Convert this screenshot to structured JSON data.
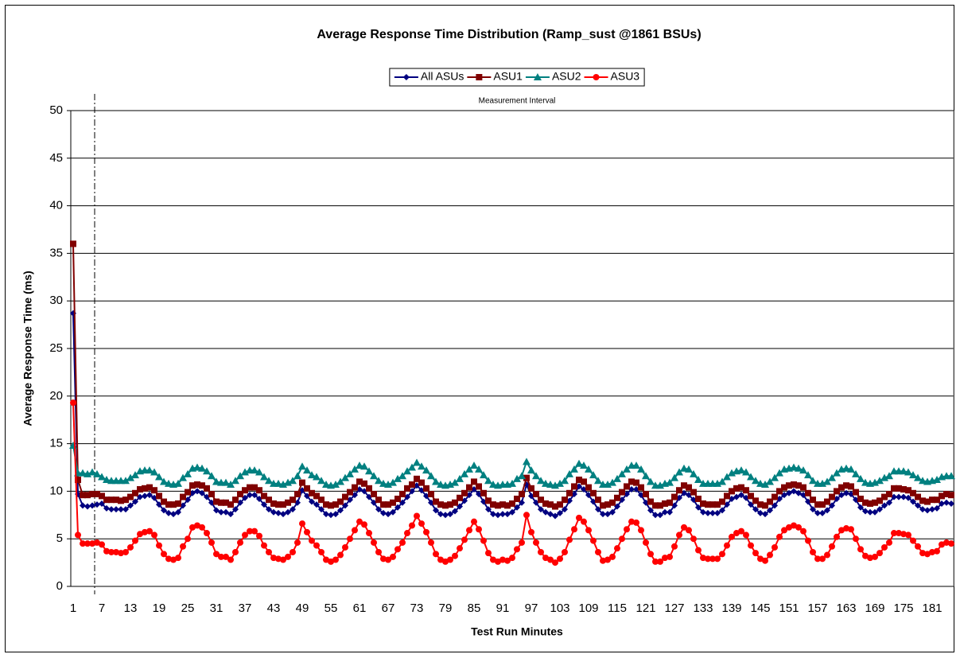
{
  "chart_data": {
    "type": "line",
    "title": "Average Response Time Distribution (Ramp_sust @1861 BSUs)",
    "xlabel": "Test Run Minutes",
    "ylabel": "Average Response Time (ms)",
    "measurement_interval": {
      "label": "Measurement Interval",
      "start": 6
    },
    "ylim": [
      0,
      50
    ],
    "yticks": [
      0,
      5,
      10,
      15,
      20,
      25,
      30,
      35,
      40,
      45,
      50
    ],
    "grid": true,
    "legend": "top",
    "categories": [
      "1",
      null,
      null,
      null,
      null,
      null,
      "7",
      null,
      null,
      null,
      null,
      null,
      "13",
      null,
      null,
      null,
      null,
      null,
      "19",
      null,
      null,
      null,
      null,
      null,
      "25",
      null,
      null,
      null,
      null,
      null,
      "31",
      null,
      null,
      null,
      null,
      null,
      "37",
      null,
      null,
      null,
      null,
      null,
      "43",
      null,
      null,
      null,
      null,
      null,
      "49",
      null,
      null,
      null,
      null,
      null,
      "55",
      null,
      null,
      null,
      null,
      null,
      "61",
      null,
      null,
      null,
      null,
      null,
      "67",
      null,
      null,
      null,
      null,
      null,
      "73",
      null,
      null,
      null,
      null,
      null,
      "79",
      null,
      null,
      null,
      null,
      null,
      "85",
      null,
      null,
      null,
      null,
      null,
      "91",
      null,
      null,
      null,
      null,
      null,
      "97",
      null,
      null,
      null,
      null,
      null,
      "103",
      null,
      null,
      null,
      null,
      null,
      "109",
      null,
      null,
      null,
      null,
      null,
      "115",
      null,
      null,
      null,
      null,
      null,
      "121",
      null,
      null,
      null,
      null,
      null,
      "127",
      null,
      null,
      null,
      null,
      null,
      "133",
      null,
      null,
      null,
      null,
      null,
      "139",
      null,
      null,
      null,
      null,
      null,
      "145",
      null,
      null,
      null,
      null,
      null,
      "151",
      null,
      null,
      null,
      null,
      null,
      "157",
      null,
      null,
      null,
      null,
      null,
      "163",
      null,
      null,
      null,
      null,
      null,
      "169",
      null,
      null,
      null,
      null,
      null,
      "175",
      null,
      null,
      null,
      null,
      null,
      "181",
      null,
      null,
      null,
      null
    ],
    "series": [
      {
        "name": "All ASUs",
        "color": "#000080",
        "marker": "diamond",
        "values": [
          28.7,
          9.7,
          8.5,
          8.4,
          8.5,
          8.6,
          8.7,
          8.2,
          8.1,
          8.1,
          8.1,
          8.1,
          8.5,
          8.9,
          9.4,
          9.5,
          9.6,
          9.3,
          8.6,
          8.0,
          7.7,
          7.6,
          7.8,
          8.5,
          9.1,
          9.8,
          10.0,
          9.8,
          9.4,
          8.8,
          8.0,
          7.8,
          7.8,
          7.6,
          8.1,
          8.8,
          9.3,
          9.6,
          9.6,
          9.2,
          8.6,
          8.1,
          7.8,
          7.7,
          7.6,
          7.8,
          8.1,
          8.8,
          10.1,
          9.5,
          8.9,
          8.6,
          8.1,
          7.6,
          7.5,
          7.6,
          8.0,
          8.5,
          9.1,
          9.6,
          10.2,
          10.0,
          9.4,
          8.8,
          8.1,
          7.7,
          7.6,
          7.8,
          8.3,
          8.8,
          9.4,
          10.0,
          10.6,
          10.1,
          9.5,
          8.8,
          8.0,
          7.6,
          7.5,
          7.6,
          7.9,
          8.4,
          9.0,
          9.6,
          10.2,
          9.7,
          8.9,
          8.1,
          7.6,
          7.5,
          7.6,
          7.6,
          7.8,
          8.3,
          8.8,
          10.7,
          9.5,
          8.8,
          8.1,
          7.8,
          7.6,
          7.4,
          7.7,
          8.1,
          9.0,
          9.7,
          10.5,
          10.2,
          9.6,
          8.9,
          8.1,
          7.6,
          7.6,
          7.8,
          8.4,
          9.1,
          9.7,
          10.2,
          10.2,
          9.6,
          8.8,
          8.0,
          7.5,
          7.5,
          7.8,
          7.8,
          8.5,
          9.3,
          9.8,
          9.6,
          9.1,
          8.3,
          7.8,
          7.7,
          7.7,
          7.7,
          8.0,
          8.6,
          9.2,
          9.4,
          9.6,
          9.3,
          8.6,
          8.1,
          7.7,
          7.6,
          8.0,
          8.5,
          9.2,
          9.6,
          9.8,
          10.0,
          9.8,
          9.6,
          8.9,
          8.1,
          7.7,
          7.7,
          8.0,
          8.5,
          9.2,
          9.6,
          9.8,
          9.7,
          9.1,
          8.3,
          7.9,
          7.8,
          7.8,
          8.1,
          8.5,
          8.8,
          9.4,
          9.4,
          9.4,
          9.3,
          8.9,
          8.5,
          8.1,
          8.0,
          8.1,
          8.2,
          8.7,
          8.8,
          8.7
        ]
      },
      {
        "name": "ASU1",
        "color": "#800000",
        "marker": "square",
        "values": [
          36.0,
          11.2,
          9.6,
          9.6,
          9.7,
          9.7,
          9.5,
          9.1,
          9.1,
          9.1,
          9.0,
          9.1,
          9.4,
          9.8,
          10.2,
          10.3,
          10.4,
          10.1,
          9.5,
          8.9,
          8.6,
          8.6,
          8.7,
          9.4,
          9.9,
          10.6,
          10.7,
          10.6,
          10.3,
          9.7,
          8.9,
          8.8,
          8.8,
          8.6,
          9.1,
          9.7,
          10.1,
          10.4,
          10.4,
          10.1,
          9.5,
          9.1,
          8.7,
          8.6,
          8.6,
          8.8,
          9.1,
          9.7,
          10.9,
          10.3,
          9.8,
          9.5,
          9.1,
          8.6,
          8.5,
          8.6,
          8.9,
          9.4,
          9.9,
          10.4,
          11.0,
          10.8,
          10.3,
          9.7,
          9.1,
          8.6,
          8.6,
          8.8,
          9.2,
          9.7,
          10.3,
          10.7,
          11.3,
          10.9,
          10.3,
          9.7,
          8.9,
          8.6,
          8.5,
          8.6,
          8.8,
          9.3,
          9.8,
          10.4,
          11.0,
          10.5,
          9.8,
          9.0,
          8.6,
          8.5,
          8.6,
          8.5,
          8.7,
          9.2,
          9.7,
          11.4,
          10.3,
          9.7,
          9.1,
          8.7,
          8.6,
          8.4,
          8.6,
          9.1,
          9.8,
          10.5,
          11.2,
          11.0,
          10.4,
          9.8,
          9.1,
          8.5,
          8.6,
          8.8,
          9.3,
          9.9,
          10.5,
          11.0,
          10.9,
          10.4,
          9.7,
          8.9,
          8.5,
          8.5,
          8.7,
          8.8,
          9.4,
          10.1,
          10.6,
          10.4,
          9.9,
          9.2,
          8.7,
          8.6,
          8.6,
          8.6,
          8.9,
          9.5,
          10.0,
          10.3,
          10.4,
          10.1,
          9.5,
          9.0,
          8.6,
          8.5,
          8.9,
          9.4,
          10.0,
          10.4,
          10.6,
          10.7,
          10.6,
          10.4,
          9.8,
          9.1,
          8.6,
          8.6,
          8.9,
          9.4,
          10.0,
          10.4,
          10.6,
          10.5,
          9.9,
          9.2,
          8.8,
          8.7,
          8.8,
          9.0,
          9.4,
          9.7,
          10.3,
          10.3,
          10.2,
          10.1,
          9.8,
          9.4,
          9.0,
          8.9,
          9.1,
          9.1,
          9.5,
          9.7,
          9.6
        ]
      },
      {
        "name": "ASU2",
        "color": "#008080",
        "marker": "triangle",
        "values": [
          14.8,
          11.9,
          11.9,
          11.8,
          12.0,
          11.8,
          11.5,
          11.2,
          11.1,
          11.1,
          11.1,
          11.1,
          11.4,
          11.7,
          12.1,
          12.2,
          12.2,
          12.0,
          11.5,
          11.0,
          10.8,
          10.7,
          10.8,
          11.4,
          11.8,
          12.4,
          12.5,
          12.4,
          12.1,
          11.6,
          11.0,
          10.9,
          10.9,
          10.7,
          11.1,
          11.6,
          12.0,
          12.2,
          12.2,
          12.0,
          11.5,
          11.1,
          10.8,
          10.8,
          10.7,
          10.9,
          11.1,
          11.6,
          12.6,
          12.2,
          11.7,
          11.5,
          11.1,
          10.7,
          10.6,
          10.7,
          11.0,
          11.4,
          11.8,
          12.3,
          12.7,
          12.6,
          12.1,
          11.6,
          11.1,
          10.8,
          10.7,
          10.9,
          11.3,
          11.6,
          12.1,
          12.5,
          13.0,
          12.6,
          12.2,
          11.6,
          11.0,
          10.7,
          10.6,
          10.7,
          10.9,
          11.3,
          11.8,
          12.3,
          12.7,
          12.3,
          11.7,
          11.1,
          10.7,
          10.6,
          10.7,
          10.7,
          10.8,
          11.3,
          11.6,
          13.1,
          12.2,
          11.6,
          11.1,
          10.8,
          10.7,
          10.6,
          10.8,
          11.1,
          11.8,
          12.3,
          12.9,
          12.7,
          12.3,
          11.7,
          11.1,
          10.7,
          10.7,
          10.9,
          11.3,
          11.8,
          12.3,
          12.7,
          12.7,
          12.3,
          11.6,
          11.0,
          10.6,
          10.6,
          10.8,
          10.9,
          11.4,
          12.0,
          12.4,
          12.3,
          11.8,
          11.2,
          10.8,
          10.8,
          10.8,
          10.8,
          11.0,
          11.5,
          11.9,
          12.1,
          12.2,
          12.0,
          11.5,
          11.1,
          10.8,
          10.7,
          11.0,
          11.4,
          11.9,
          12.3,
          12.4,
          12.5,
          12.4,
          12.2,
          11.7,
          11.1,
          10.8,
          10.8,
          11.0,
          11.4,
          11.9,
          12.3,
          12.4,
          12.3,
          11.8,
          11.3,
          10.9,
          10.8,
          10.9,
          11.1,
          11.4,
          11.6,
          12.1,
          12.1,
          12.1,
          12.0,
          11.7,
          11.4,
          11.1,
          11.0,
          11.1,
          11.2,
          11.5,
          11.6,
          11.6
        ]
      },
      {
        "name": "ASU3",
        "color": "#ff0000",
        "marker": "circle",
        "values": [
          19.3,
          5.4,
          4.5,
          4.5,
          4.5,
          4.6,
          4.4,
          3.7,
          3.6,
          3.6,
          3.5,
          3.6,
          4.1,
          4.8,
          5.5,
          5.7,
          5.8,
          5.4,
          4.3,
          3.4,
          2.9,
          2.8,
          3.0,
          4.2,
          5.0,
          6.2,
          6.4,
          6.2,
          5.6,
          4.6,
          3.4,
          3.1,
          3.1,
          2.8,
          3.6,
          4.6,
          5.4,
          5.8,
          5.8,
          5.3,
          4.3,
          3.6,
          3.0,
          2.9,
          2.8,
          3.1,
          3.6,
          4.6,
          6.6,
          5.7,
          4.8,
          4.3,
          3.6,
          2.8,
          2.6,
          2.8,
          3.3,
          4.1,
          5.0,
          5.9,
          6.8,
          6.5,
          5.6,
          4.6,
          3.6,
          2.9,
          2.8,
          3.1,
          3.9,
          4.6,
          5.6,
          6.4,
          7.4,
          6.6,
          5.7,
          4.6,
          3.4,
          2.8,
          2.6,
          2.8,
          3.2,
          4.0,
          4.9,
          5.9,
          6.8,
          6.0,
          4.8,
          3.5,
          2.8,
          2.6,
          2.8,
          2.7,
          3.0,
          3.9,
          4.6,
          7.5,
          5.7,
          4.6,
          3.6,
          3.0,
          2.8,
          2.5,
          2.9,
          3.6,
          4.9,
          6.0,
          7.2,
          6.8,
          5.9,
          4.8,
          3.6,
          2.7,
          2.8,
          3.1,
          4.0,
          5.0,
          6.0,
          6.8,
          6.7,
          5.9,
          4.6,
          3.4,
          2.6,
          2.6,
          3.0,
          3.1,
          4.2,
          5.4,
          6.2,
          5.9,
          5.0,
          3.8,
          3.0,
          2.9,
          2.9,
          2.9,
          3.4,
          4.3,
          5.2,
          5.6,
          5.8,
          5.4,
          4.3,
          3.5,
          2.9,
          2.7,
          3.3,
          4.1,
          5.2,
          5.9,
          6.2,
          6.4,
          6.2,
          5.8,
          4.8,
          3.6,
          2.9,
          2.9,
          3.3,
          4.2,
          5.2,
          5.9,
          6.1,
          6.0,
          5.0,
          3.9,
          3.2,
          3.0,
          3.1,
          3.5,
          4.1,
          4.6,
          5.6,
          5.6,
          5.5,
          5.4,
          4.8,
          4.2,
          3.5,
          3.4,
          3.6,
          3.7,
          4.4,
          4.6,
          4.5
        ]
      }
    ]
  }
}
